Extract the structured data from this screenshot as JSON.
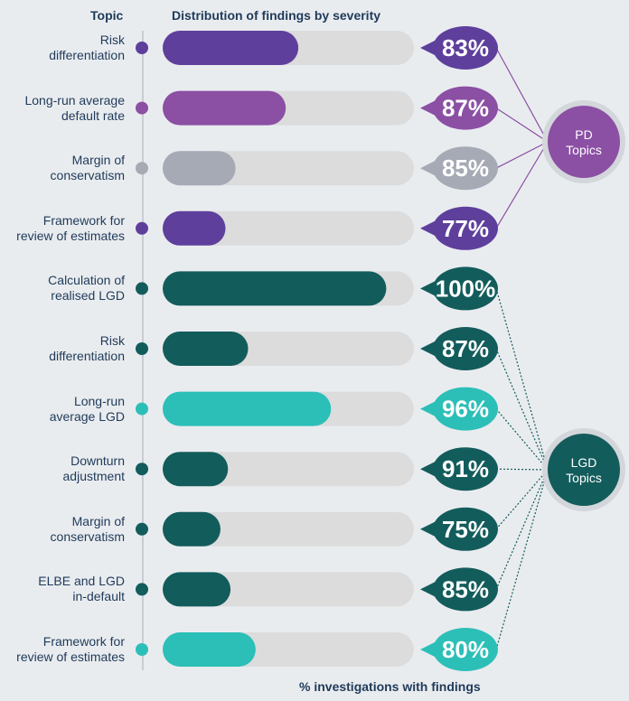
{
  "header": {
    "topic_label": "Topic",
    "chart_title": "Distribution of findings by severity",
    "footer_label": "% investigations with findings"
  },
  "colors": {
    "pd_dark": "#5e3f9c",
    "pd_magenta": "#8b4fa4",
    "pd_grey": "#a6aab5",
    "lgd_dark": "#135c5c",
    "lgd_teal": "#2cbfb8",
    "track": "#dcdcdc"
  },
  "groups": [
    {
      "name": "PD\nTopics",
      "color": "#8b4fa4"
    },
    {
      "name": "LGD\nTopics",
      "color": "#135c5c"
    }
  ],
  "chart_data": {
    "type": "bar",
    "title": "Distribution of findings by severity",
    "xlabel": "% investigations with findings",
    "categories": [
      "Risk\ndifferentiation",
      "Long-run average\ndefault rate",
      "Margin of\nconservatism",
      "Framework for\nreview of estimates",
      "Calculation of\nrealised LGD",
      "Risk\ndifferentiation",
      "Long-run\naverage LGD",
      "Downturn\nadjustment",
      "Margin of\nconservatism",
      "ELBE and LGD\nin-default",
      "Framework for\nreview of estimates"
    ],
    "bar_fill_fraction": [
      0.54,
      0.49,
      0.29,
      0.25,
      0.89,
      0.34,
      0.67,
      0.26,
      0.23,
      0.27,
      0.37
    ],
    "percent_labels": [
      "83%",
      "87%",
      "85%",
      "77%",
      "100%",
      "87%",
      "96%",
      "91%",
      "75%",
      "85%",
      "80%"
    ],
    "values": [
      83,
      87,
      85,
      77,
      100,
      87,
      96,
      91,
      75,
      85,
      80
    ],
    "group_index": [
      0,
      0,
      0,
      0,
      1,
      1,
      1,
      1,
      1,
      1,
      1
    ],
    "colors": [
      "#5e3f9c",
      "#8b4fa4",
      "#a6aab5",
      "#5e3f9c",
      "#135c5c",
      "#135c5c",
      "#2cbfb8",
      "#135c5c",
      "#135c5c",
      "#135c5c",
      "#2cbfb8"
    ]
  }
}
